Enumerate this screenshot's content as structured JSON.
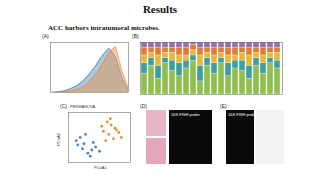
{
  "title": "Results",
  "subtitle": "ACC harbors intratumoral microbes.",
  "chart_data": [
    {
      "panel": "(A)",
      "type": "area",
      "tick_labels": false,
      "x": [
        0.4,
        0.45,
        0.5,
        0.55,
        0.6,
        0.65,
        0.7,
        0.75,
        0.8,
        0.85,
        0.9,
        0.95,
        1.0
      ],
      "xlim": [
        0.4,
        1.0
      ],
      "ylim": [
        0,
        7
      ],
      "series": [
        {
          "color": "#4a86c5",
          "values": [
            0,
            0.1,
            0.2,
            0.5,
            0.9,
            1.6,
            2.6,
            3.8,
            5.2,
            6.2,
            5.0,
            2.0,
            0.3
          ]
        },
        {
          "color": "#e8913a",
          "values": [
            0,
            0,
            0.1,
            0.2,
            0.4,
            0.8,
            1.5,
            2.6,
            4.0,
            5.6,
            6.4,
            3.0,
            0.5
          ]
        }
      ]
    },
    {
      "panel": "(B)",
      "type": "bar",
      "stacked": true,
      "tick_labels": false,
      "categories": [
        null,
        null,
        null,
        null,
        null,
        null,
        null,
        null,
        null,
        null,
        null,
        null,
        null,
        null,
        null,
        null,
        null,
        null,
        null,
        null
      ],
      "ylim": [
        0,
        100
      ],
      "series": [
        {
          "color": "#8fbf4d",
          "values": [
            40,
            55,
            30,
            60,
            45,
            35,
            50,
            65,
            25,
            55,
            40,
            60,
            35,
            50,
            45,
            30,
            55,
            40,
            60,
            50
          ]
        },
        {
          "color": "#3aa0a0",
          "values": [
            20,
            15,
            25,
            10,
            20,
            25,
            15,
            10,
            30,
            15,
            20,
            10,
            25,
            15,
            20,
            25,
            15,
            20,
            10,
            15
          ]
        },
        {
          "color": "#e8b83a",
          "values": [
            15,
            10,
            20,
            10,
            15,
            15,
            10,
            10,
            20,
            10,
            15,
            10,
            15,
            10,
            15,
            20,
            10,
            15,
            10,
            15
          ]
        },
        {
          "color": "#e07b39",
          "values": [
            15,
            10,
            15,
            10,
            10,
            15,
            15,
            10,
            15,
            10,
            15,
            10,
            15,
            15,
            10,
            15,
            10,
            15,
            10,
            10
          ]
        },
        {
          "color": "#9a6fb0",
          "values": [
            10,
            10,
            10,
            10,
            10,
            10,
            10,
            5,
            10,
            10,
            10,
            10,
            10,
            10,
            10,
            10,
            10,
            10,
            10,
            10
          ]
        }
      ]
    },
    {
      "panel": "(C)",
      "type": "scatter",
      "tick_labels": false,
      "annotation": "PERMANOVA",
      "x_label": "PCoA1",
      "y_label": "PCoA2",
      "xlim": [
        -0.4,
        0.4
      ],
      "ylim": [
        -0.4,
        0.4
      ],
      "series": [
        {
          "color": "#e8913a",
          "x": [
            0.05,
            0.12,
            0.2,
            0.08,
            0.15,
            0.25,
            0.1,
            0.18,
            0.22,
            0.03,
            0.14,
            0.28
          ],
          "y": [
            0.1,
            0.05,
            0.15,
            -0.05,
            0.2,
            0.08,
            0.25,
            -0.02,
            0.12,
            0.18,
            0.3,
            0.0
          ]
        },
        {
          "color": "#4a86c5",
          "x": [
            -0.2,
            -0.1,
            -0.25,
            -0.15,
            -0.05,
            -0.3,
            -0.12,
            -0.22,
            -0.08,
            -0.18,
            0.0,
            -0.28
          ],
          "y": [
            -0.1,
            -0.2,
            0.0,
            -0.25,
            -0.15,
            -0.05,
            -0.3,
            -0.18,
            -0.08,
            0.05,
            -0.22,
            -0.12
          ]
        }
      ]
    }
  ],
  "images": [
    {
      "panel": "(D)",
      "labels": [
        "16S FISH probe"
      ]
    },
    {
      "panel": "(E)",
      "labels": [
        "16S FISH probe"
      ]
    }
  ]
}
